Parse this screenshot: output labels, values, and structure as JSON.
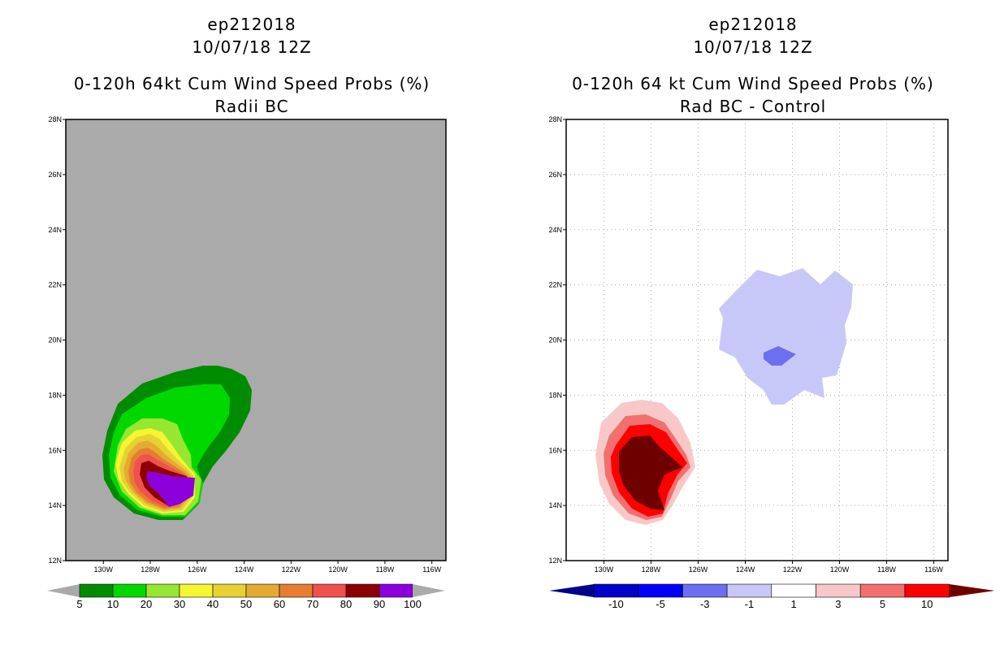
{
  "left": {
    "storm_id": "ep212018",
    "datetime": "10/07/18 12Z",
    "title": "0-120h 64kt Cum Wind Speed Probs (%)",
    "subtitle": "Radii BC",
    "colorbar": {
      "labels": [
        "5",
        "10",
        "20",
        "30",
        "40",
        "50",
        "60",
        "70",
        "80",
        "90",
        "100"
      ],
      "colors": [
        "#008c00",
        "#00d800",
        "#96e632",
        "#f5f532",
        "#e6d232",
        "#e6aa32",
        "#e67d32",
        "#f05050",
        "#8c0000",
        "#8c00dc"
      ],
      "extend_color": "#aaaaaa"
    },
    "background_color": "#aaaaaa"
  },
  "right": {
    "storm_id": "ep212018",
    "datetime": "10/07/18 12Z",
    "title": "0-120h 64 kt Cum Wind Speed Probs (%)",
    "subtitle": "Rad BC - Control",
    "colorbar": {
      "labels": [
        "-10",
        "-5",
        "-3",
        "-1",
        "1",
        "3",
        "5",
        "10"
      ],
      "colors": [
        "#0000c8",
        "#0000ff",
        "#6e6ef0",
        "#c8c8f8",
        "#ffffff",
        "#f8c8c8",
        "#f07070",
        "#ff0000"
      ],
      "low_extend_color": "#00008c",
      "high_extend_color": "#6e0000"
    }
  },
  "axes": {
    "lat_labels": [
      "28N",
      "26N",
      "24N",
      "22N",
      "20N",
      "18N",
      "16N",
      "14N",
      "12N"
    ],
    "lon_labels": [
      "130W",
      "128W",
      "126W",
      "124W",
      "122W",
      "120W",
      "118W",
      "116W"
    ],
    "lat_values": [
      28,
      26,
      24,
      22,
      20,
      18,
      16,
      14,
      12
    ],
    "lon_values": [
      130,
      128,
      126,
      124,
      122,
      120,
      118,
      116
    ],
    "lat_range": [
      12,
      28
    ],
    "lon_range": [
      131.6,
      115.4
    ]
  }
}
